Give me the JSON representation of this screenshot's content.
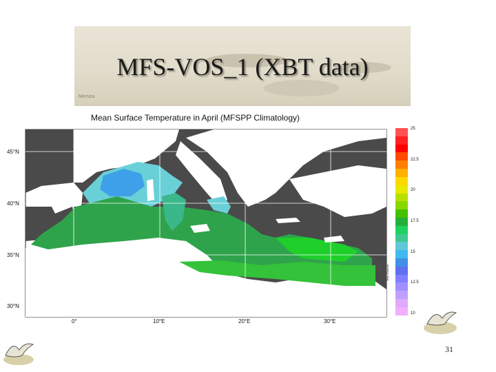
{
  "header": {
    "title": "MFS-VOS_1 (XBT data)",
    "logo_text": "Mersea"
  },
  "map": {
    "title": "Mean Surface Temperature in April (MFSPP Climatology)",
    "lat_labels": [
      "45°N",
      "40°N",
      "35°N",
      "30°N"
    ],
    "lon_labels": [
      "0°",
      "10°E",
      "20°E",
      "30°E"
    ],
    "colorbar": {
      "ticks": [
        "25",
        "22.5",
        "20",
        "17.5",
        "15",
        "12.5",
        "10"
      ],
      "colors": [
        "#ff5050",
        "#ff2020",
        "#ff0000",
        "#ff4a00",
        "#ff8000",
        "#ffb000",
        "#ffd800",
        "#e8e800",
        "#b8e000",
        "#88d800",
        "#44c000",
        "#22b03a",
        "#22d060",
        "#40c890",
        "#60c8d8",
        "#40b8f0",
        "#4090e8",
        "#6070f0",
        "#8080ff",
        "#a090ff",
        "#c0a0ff",
        "#e0a8ff",
        "#f0b0ff"
      ],
      "author": "Jean Gouriou"
    }
  },
  "footer": {
    "page_number": "31"
  }
}
